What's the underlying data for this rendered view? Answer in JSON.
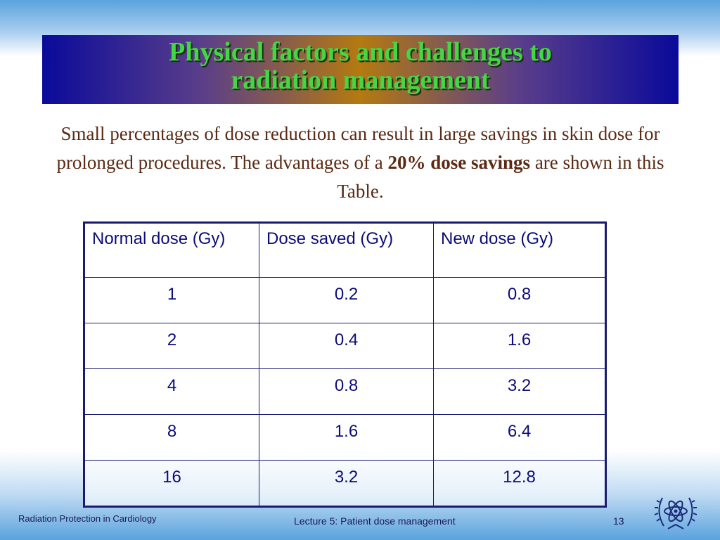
{
  "slide": {
    "title_line1": "Physical factors and challenges to",
    "title_line2": "radiation management",
    "intro_pre": "Small percentages of dose reduction can result in large savings in skin dose for prolonged procedures. The advantages of a ",
    "intro_bold": "20% dose savings",
    "intro_post": " are shown in this Table."
  },
  "table": {
    "headers": [
      "Normal dose (Gy)",
      "Dose saved (Gy)",
      "New dose (Gy)"
    ],
    "rows": [
      [
        "1",
        "0.2",
        "0.8"
      ],
      [
        "2",
        "0.4",
        "1.6"
      ],
      [
        "4",
        "0.8",
        "3.2"
      ],
      [
        "8",
        "1.6",
        "6.4"
      ],
      [
        "16",
        "3.2",
        "12.8"
      ]
    ]
  },
  "footer": {
    "left": "Radiation Protection in Cardiology",
    "center": "Lecture 5: Patient dose management",
    "page": "13",
    "logo_icon": "iaea-logo"
  }
}
